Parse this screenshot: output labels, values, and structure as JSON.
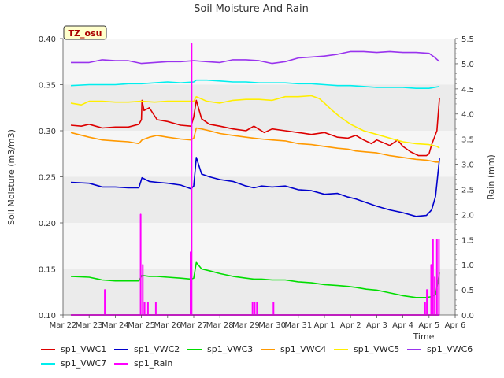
{
  "chart_data": {
    "type": "line",
    "title": "Soil Moisture And Rain",
    "station_badge": "TZ_osu",
    "xlabel": "Time",
    "ylabel_left": "Soil Moisture (m3/m3)",
    "ylabel_right": "Rain (mm)",
    "ylim_left": [
      0.1,
      0.4
    ],
    "ylim_right": [
      0.0,
      5.5
    ],
    "yticks_left": [
      "0.10",
      "0.15",
      "0.20",
      "0.25",
      "0.30",
      "0.35",
      "0.40"
    ],
    "yticks_right": [
      "0.0",
      "0.5",
      "1.0",
      "1.5",
      "2.0",
      "2.5",
      "3.0",
      "3.5",
      "4.0",
      "4.5",
      "5.0",
      "5.5"
    ],
    "xlim_days": [
      0,
      15
    ],
    "xticks": [
      "Mar 22",
      "Mar 23",
      "Mar 24",
      "Mar 25",
      "Mar 26",
      "Mar 27",
      "Mar 28",
      "Mar 29",
      "Mar 30",
      "Mar 31",
      "Apr 1",
      "Apr 2",
      "Apr 3",
      "Apr 4",
      "Apr 5",
      "Apr 6"
    ],
    "legend_position": "bottom",
    "grid": "alternating horizontal bands",
    "series": [
      {
        "name": "sp1_VWC1",
        "color": "#dd0000",
        "axis": "left",
        "x": [
          0.3,
          0.7,
          1.0,
          1.5,
          2.0,
          2.5,
          2.9,
          3.0,
          3.02,
          3.1,
          3.3,
          3.6,
          4.0,
          4.5,
          4.9,
          5.0,
          5.1,
          5.3,
          5.6,
          6.0,
          6.5,
          7.0,
          7.3,
          7.7,
          8.0,
          8.5,
          9.0,
          9.5,
          10.0,
          10.5,
          10.9,
          11.2,
          11.5,
          11.8,
          12.0,
          12.5,
          12.8,
          13.0,
          13.3,
          13.6,
          13.9,
          14.0,
          14.1,
          14.3,
          14.4
        ],
        "y": [
          0.306,
          0.305,
          0.307,
          0.303,
          0.304,
          0.304,
          0.307,
          0.312,
          0.333,
          0.322,
          0.325,
          0.312,
          0.31,
          0.306,
          0.305,
          0.315,
          0.333,
          0.313,
          0.307,
          0.305,
          0.302,
          0.3,
          0.305,
          0.298,
          0.302,
          0.3,
          0.298,
          0.296,
          0.298,
          0.293,
          0.292,
          0.295,
          0.29,
          0.286,
          0.29,
          0.284,
          0.29,
          0.283,
          0.277,
          0.273,
          0.273,
          0.275,
          0.285,
          0.3,
          0.336
        ]
      },
      {
        "name": "sp1_VWC2",
        "color": "#0000cc",
        "axis": "left",
        "x": [
          0.3,
          1.0,
          1.5,
          2.0,
          2.5,
          2.9,
          3.02,
          3.3,
          3.6,
          4.0,
          4.5,
          4.9,
          5.0,
          5.1,
          5.3,
          5.6,
          6.0,
          6.5,
          7.0,
          7.3,
          7.6,
          8.0,
          8.5,
          9.0,
          9.5,
          10.0,
          10.5,
          10.9,
          11.2,
          11.6,
          12.0,
          12.5,
          13.0,
          13.5,
          13.9,
          14.1,
          14.25,
          14.4
        ],
        "y": [
          0.244,
          0.243,
          0.239,
          0.239,
          0.238,
          0.238,
          0.249,
          0.245,
          0.244,
          0.243,
          0.241,
          0.237,
          0.24,
          0.271,
          0.253,
          0.25,
          0.247,
          0.245,
          0.24,
          0.238,
          0.24,
          0.239,
          0.24,
          0.236,
          0.235,
          0.231,
          0.232,
          0.228,
          0.226,
          0.222,
          0.218,
          0.214,
          0.211,
          0.207,
          0.208,
          0.214,
          0.229,
          0.27
        ]
      },
      {
        "name": "sp1_VWC3",
        "color": "#00dd00",
        "axis": "left",
        "x": [
          0.3,
          1.0,
          1.5,
          2.0,
          2.5,
          2.9,
          3.02,
          3.3,
          3.6,
          4.0,
          4.5,
          4.9,
          5.0,
          5.1,
          5.3,
          5.6,
          6.0,
          6.5,
          7.0,
          7.3,
          7.6,
          8.0,
          8.5,
          9.0,
          9.5,
          10.0,
          10.5,
          10.9,
          11.2,
          11.6,
          12.0,
          12.5,
          13.0,
          13.5,
          13.9,
          14.1,
          14.25,
          14.4
        ],
        "y": [
          0.142,
          0.141,
          0.138,
          0.137,
          0.137,
          0.137,
          0.143,
          0.142,
          0.142,
          0.141,
          0.14,
          0.139,
          0.14,
          0.157,
          0.15,
          0.148,
          0.145,
          0.142,
          0.14,
          0.139,
          0.139,
          0.138,
          0.138,
          0.136,
          0.135,
          0.133,
          0.132,
          0.131,
          0.13,
          0.128,
          0.127,
          0.124,
          0.121,
          0.119,
          0.119,
          0.12,
          0.122,
          0.146
        ]
      },
      {
        "name": "sp1_VWC4",
        "color": "#ff9900",
        "axis": "left",
        "x": [
          0.3,
          1.0,
          1.5,
          2.0,
          2.5,
          2.9,
          3.02,
          3.3,
          3.6,
          4.0,
          4.5,
          4.9,
          5.0,
          5.1,
          5.3,
          5.6,
          6.0,
          6.5,
          7.0,
          7.3,
          7.6,
          8.0,
          8.5,
          9.0,
          9.5,
          10.0,
          10.5,
          10.9,
          11.2,
          11.6,
          12.0,
          12.5,
          13.0,
          13.5,
          13.9,
          14.1,
          14.25,
          14.4
        ],
        "y": [
          0.298,
          0.293,
          0.29,
          0.289,
          0.288,
          0.286,
          0.29,
          0.293,
          0.295,
          0.293,
          0.291,
          0.29,
          0.292,
          0.303,
          0.302,
          0.3,
          0.297,
          0.295,
          0.293,
          0.292,
          0.291,
          0.29,
          0.289,
          0.286,
          0.285,
          0.283,
          0.281,
          0.28,
          0.278,
          0.277,
          0.276,
          0.273,
          0.271,
          0.269,
          0.268,
          0.267,
          0.266,
          0.266
        ]
      },
      {
        "name": "sp1_VWC5",
        "color": "#ffee00",
        "axis": "left",
        "x": [
          0.3,
          0.7,
          1.0,
          1.5,
          2.0,
          2.5,
          3.0,
          3.5,
          4.0,
          4.5,
          4.9,
          5.0,
          5.1,
          5.5,
          6.0,
          6.5,
          7.0,
          7.5,
          8.0,
          8.5,
          9.0,
          9.5,
          9.8,
          10.0,
          10.3,
          10.6,
          11.0,
          11.5,
          12.0,
          12.5,
          13.0,
          13.5,
          14.0,
          14.3,
          14.4
        ],
        "y": [
          0.33,
          0.328,
          0.332,
          0.332,
          0.331,
          0.331,
          0.332,
          0.331,
          0.332,
          0.332,
          0.332,
          0.332,
          0.337,
          0.332,
          0.33,
          0.333,
          0.334,
          0.334,
          0.333,
          0.337,
          0.337,
          0.338,
          0.335,
          0.33,
          0.322,
          0.315,
          0.307,
          0.3,
          0.296,
          0.292,
          0.288,
          0.286,
          0.285,
          0.283,
          0.281
        ]
      },
      {
        "name": "sp1_VWC6",
        "color": "#9933ee",
        "axis": "left",
        "x": [
          0.3,
          1.0,
          1.5,
          2.0,
          2.5,
          3.0,
          3.5,
          4.0,
          4.5,
          5.0,
          5.5,
          6.0,
          6.5,
          7.0,
          7.5,
          8.0,
          8.5,
          9.0,
          9.5,
          10.0,
          10.5,
          11.0,
          11.5,
          12.0,
          12.5,
          13.0,
          13.5,
          14.0,
          14.2,
          14.4
        ],
        "y": [
          0.374,
          0.374,
          0.377,
          0.376,
          0.376,
          0.373,
          0.374,
          0.375,
          0.375,
          0.376,
          0.375,
          0.374,
          0.377,
          0.377,
          0.376,
          0.373,
          0.375,
          0.379,
          0.38,
          0.381,
          0.383,
          0.386,
          0.386,
          0.385,
          0.386,
          0.385,
          0.385,
          0.384,
          0.38,
          0.375
        ]
      },
      {
        "name": "sp1_VWC7",
        "color": "#00eeee",
        "axis": "left",
        "x": [
          0.3,
          1.0,
          1.5,
          2.0,
          2.5,
          3.0,
          3.5,
          4.0,
          4.5,
          5.0,
          5.1,
          5.5,
          6.0,
          6.5,
          7.0,
          7.5,
          8.0,
          8.5,
          9.0,
          9.5,
          10.0,
          10.5,
          11.0,
          11.5,
          12.0,
          12.5,
          13.0,
          13.5,
          14.0,
          14.4
        ],
        "y": [
          0.349,
          0.35,
          0.35,
          0.35,
          0.351,
          0.351,
          0.352,
          0.353,
          0.352,
          0.353,
          0.355,
          0.355,
          0.354,
          0.353,
          0.353,
          0.352,
          0.352,
          0.352,
          0.351,
          0.351,
          0.35,
          0.349,
          0.349,
          0.348,
          0.347,
          0.347,
          0.347,
          0.346,
          0.346,
          0.348
        ]
      },
      {
        "name": "sp1_Rain",
        "color": "#ff00ff",
        "axis": "right",
        "x": [
          1.6,
          2.97,
          3.05,
          3.12,
          3.25,
          3.55,
          4.88,
          4.92,
          7.25,
          7.33,
          7.42,
          8.05,
          13.85,
          13.92,
          14.08,
          14.15,
          14.22,
          14.3,
          14.38
        ],
        "y": [
          0.5,
          2.0,
          1.0,
          0.25,
          0.25,
          0.25,
          1.25,
          5.4,
          0.25,
          0.25,
          0.25,
          0.25,
          0.25,
          0.5,
          1.0,
          1.5,
          0.75,
          1.5,
          1.5
        ]
      }
    ]
  }
}
